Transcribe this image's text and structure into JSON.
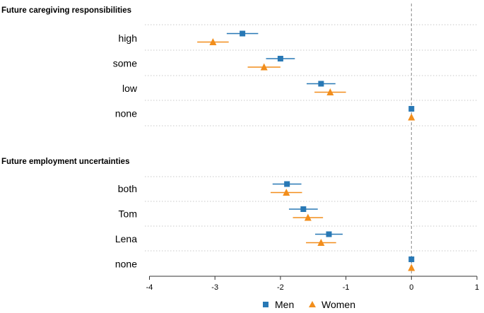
{
  "chart_data": {
    "type": "scatter",
    "orientation": "horizontal-coefficient-plot",
    "xlim": [
      -4,
      1
    ],
    "x_ticks": [
      -4,
      -3,
      -2,
      -1,
      0,
      1
    ],
    "x_tick_labels": [
      "-4",
      "-3",
      "-2",
      "-1",
      "0",
      "1"
    ],
    "reference_line": 0,
    "series": [
      {
        "name": "Men",
        "color": "#2878b5",
        "marker": "square"
      },
      {
        "name": "Women",
        "color": "#f28e1c",
        "marker": "triangle"
      }
    ],
    "groups": [
      {
        "title": "Future caregiving responsibilities",
        "categories": [
          {
            "label": "high",
            "values": {
              "Men": {
                "est": -2.58,
                "lo": -2.82,
                "hi": -2.34
              },
              "Women": {
                "est": -3.03,
                "lo": -3.27,
                "hi": -2.79
              }
            }
          },
          {
            "label": "some",
            "values": {
              "Men": {
                "est": -2.0,
                "lo": -2.22,
                "hi": -1.78
              },
              "Women": {
                "est": -2.25,
                "lo": -2.5,
                "hi": -2.0
              }
            }
          },
          {
            "label": "low",
            "values": {
              "Men": {
                "est": -1.38,
                "lo": -1.6,
                "hi": -1.16
              },
              "Women": {
                "est": -1.24,
                "lo": -1.48,
                "hi": -1.0
              }
            }
          },
          {
            "label": "none",
            "values": {
              "Men": {
                "est": 0,
                "lo": 0,
                "hi": 0
              },
              "Women": {
                "est": 0,
                "lo": 0,
                "hi": 0
              }
            }
          }
        ]
      },
      {
        "title": "Future employment uncertainties",
        "categories": [
          {
            "label": "both",
            "values": {
              "Men": {
                "est": -1.9,
                "lo": -2.12,
                "hi": -1.68
              },
              "Women": {
                "est": -1.91,
                "lo": -2.15,
                "hi": -1.67
              }
            }
          },
          {
            "label": "Tom",
            "values": {
              "Men": {
                "est": -1.65,
                "lo": -1.87,
                "hi": -1.43
              },
              "Women": {
                "est": -1.58,
                "lo": -1.81,
                "hi": -1.35
              }
            }
          },
          {
            "label": "Lena",
            "values": {
              "Men": {
                "est": -1.26,
                "lo": -1.47,
                "hi": -1.05
              },
              "Women": {
                "est": -1.38,
                "lo": -1.61,
                "hi": -1.15
              }
            }
          },
          {
            "label": "none",
            "values": {
              "Men": {
                "est": 0,
                "lo": 0,
                "hi": 0
              },
              "Women": {
                "est": 0,
                "lo": 0,
                "hi": 0
              }
            }
          }
        ]
      }
    ],
    "legend": {
      "position": "bottom",
      "entries": [
        "Men",
        "Women"
      ]
    },
    "grid": "dotted-horizontal",
    "xlabel": "",
    "ylabel": ""
  }
}
